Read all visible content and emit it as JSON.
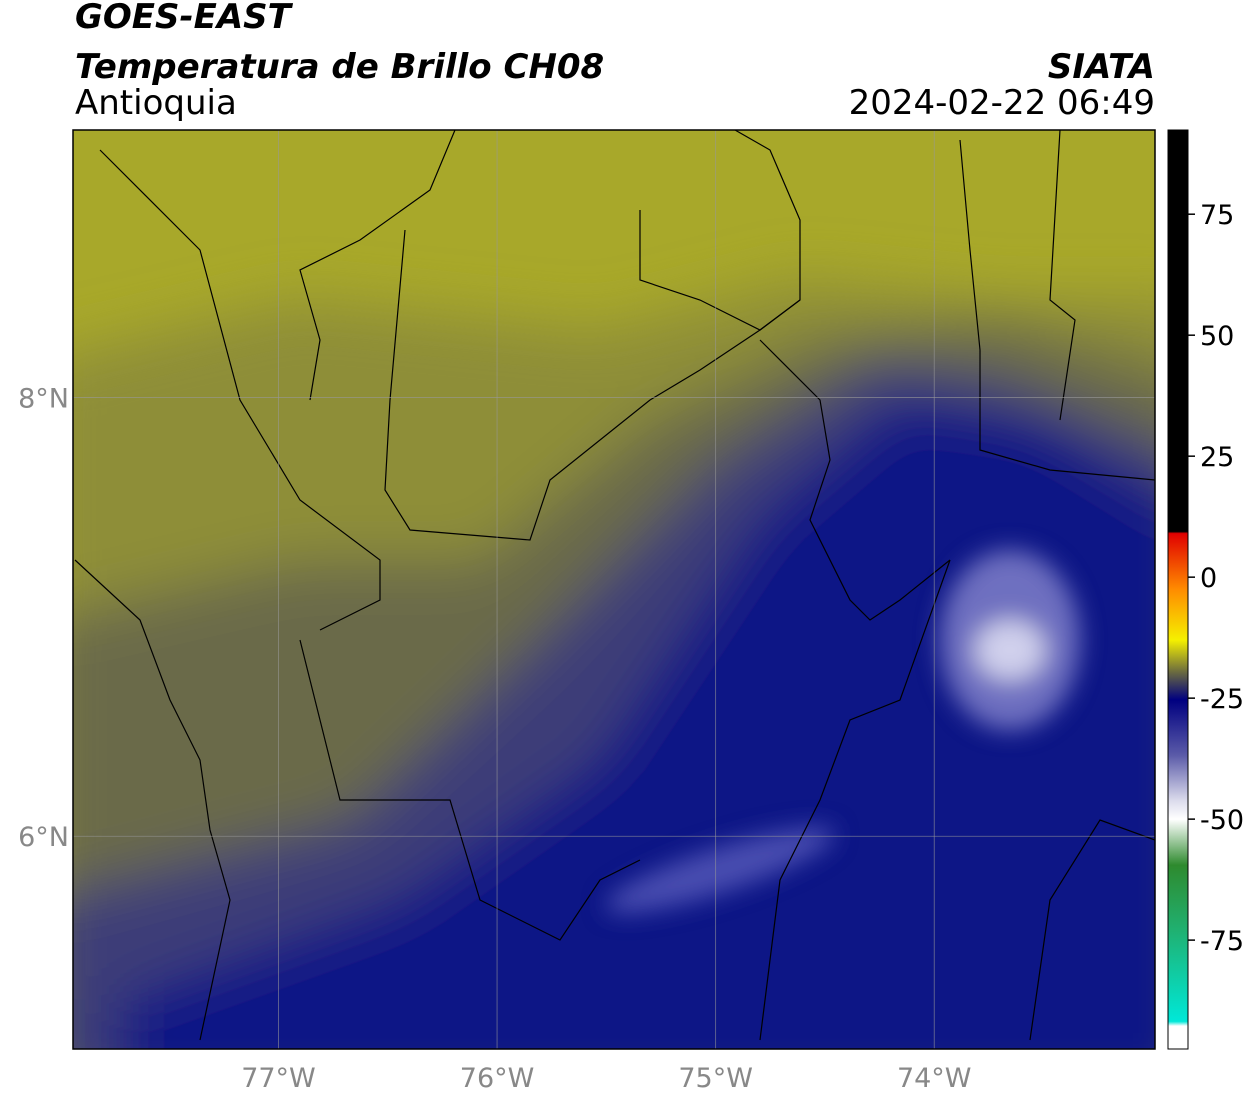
{
  "header": {
    "title": "GOES-EAST",
    "subtitle": "Temperatura de Brillo CH08",
    "region": "Antioquia",
    "source": "SIATA",
    "datetime": "2024-02-22 06:49"
  },
  "map": {
    "xlim": [
      -77.94,
      -72.99
    ],
    "ylim": [
      5.03,
      9.22
    ],
    "xticks": [
      {
        "value": -77,
        "label": "77°W"
      },
      {
        "value": -76,
        "label": "76°W"
      },
      {
        "value": -75,
        "label": "75°W"
      },
      {
        "value": -74,
        "label": "74°W"
      }
    ],
    "yticks": [
      {
        "value": 6,
        "label": "6°N"
      },
      {
        "value": 8,
        "label": "8°N"
      }
    ]
  },
  "colorbar": {
    "lim": [
      -97.5,
      92.4
    ],
    "ticks": [
      -75,
      -50,
      -25,
      0,
      25,
      50,
      75
    ]
  }
}
